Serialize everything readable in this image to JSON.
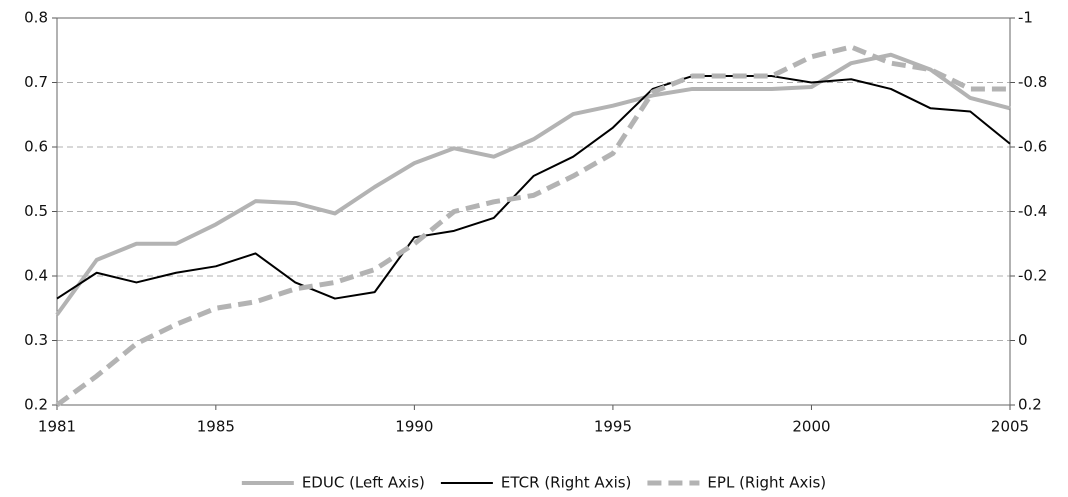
{
  "chart_data": {
    "type": "line",
    "x": [
      1981,
      1982,
      1983,
      1984,
      1985,
      1986,
      1987,
      1988,
      1989,
      1990,
      1991,
      1992,
      1993,
      1994,
      1995,
      1996,
      1997,
      1998,
      1999,
      2000,
      2001,
      2002,
      2003,
      2004,
      2005
    ],
    "xlim": [
      1981,
      2005
    ],
    "xticks": [
      1981,
      1985,
      1990,
      1995,
      2000,
      2005
    ],
    "ylim": [
      0.2,
      0.8
    ],
    "yticks": [
      0.2,
      0.3,
      0.4,
      0.5,
      0.6,
      0.7,
      0.8
    ],
    "y2lim": [
      0.2,
      -1
    ],
    "y2ticks": [
      0.2,
      0,
      -0.2,
      -0.4,
      -0.6,
      -0.8,
      -1
    ],
    "grid": true,
    "series": [
      {
        "name": "EDUC (Left Axis)",
        "color": "#b3b3b3",
        "style": "solid",
        "values": [
          0.34,
          0.425,
          0.45,
          0.45,
          0.48,
          0.516,
          0.513,
          0.497,
          0.538,
          0.575,
          0.598,
          0.585,
          0.612,
          0.651,
          0.664,
          0.68,
          0.69,
          0.69,
          0.69,
          0.693,
          0.73,
          0.743,
          0.72,
          0.676,
          0.66
        ]
      },
      {
        "name": "ETCR (Right Axis)",
        "color": "#000000",
        "style": "solid",
        "axis": "y2",
        "values": [
          -0.13,
          -0.21,
          -0.18,
          -0.21,
          -0.23,
          -0.27,
          -0.18,
          -0.13,
          -0.15,
          -0.32,
          -0.34,
          -0.38,
          -0.51,
          -0.57,
          -0.66,
          -0.78,
          -0.82,
          -0.82,
          -0.82,
          -0.8,
          -0.81,
          -0.78,
          -0.72,
          -0.71,
          -0.61
        ]
      },
      {
        "name": "EPL (Right Axis)",
        "color": "#b3b3b3",
        "style": "dashed",
        "axis": "y2",
        "values": [
          0.2,
          0.11,
          0.01,
          -0.05,
          -0.1,
          -0.12,
          -0.16,
          -0.18,
          -0.22,
          -0.3,
          -0.4,
          -0.43,
          -0.45,
          -0.51,
          -0.58,
          -0.77,
          -0.82,
          -0.82,
          -0.82,
          -0.88,
          -0.91,
          -0.86,
          -0.84,
          -0.78,
          -0.78
        ]
      }
    ]
  }
}
